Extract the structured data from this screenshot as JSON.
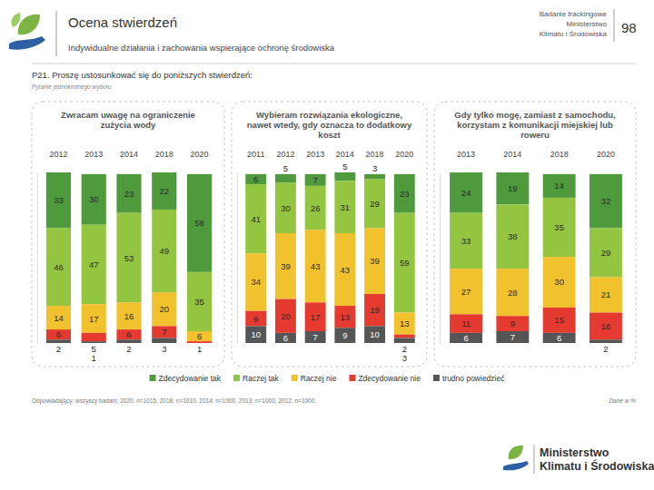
{
  "header": {
    "title": "Ocena stwierdzeń",
    "subtitle": "Indywidualne działania i zachowania wspierające ochronę środowiska",
    "source": [
      "Badanie trackingowe",
      "Ministerstwo",
      "Klimatu i Środowiska"
    ],
    "page": "98"
  },
  "question": "P21. Proszę ustosunkować się do poniższych stwierdzeń:",
  "question_note": "Pytanie jednokrotnego wyboru.",
  "footnote": "Odpowiadający: wszyscy badani; 2020: n=1015, 2018: n=1010, 2014: n=1000, 2013: n=1000, 2012: n=1000.",
  "unit_note": "Dane w %",
  "logo": [
    "Ministerstwo",
    "Klimatu i Środowiska"
  ],
  "chart_data": [
    {
      "type": "bar",
      "title": "Zwracam uwagę na ograniczenie zużycia wody",
      "stacked": true,
      "data_labels": true,
      "tick_labels": "x",
      "legend": "bottom",
      "categories": [
        "2012",
        "2013",
        "2014",
        "2018",
        "2020"
      ],
      "ylim": [
        0,
        101
      ],
      "yticks": [],
      "series": [
        {
          "name": "Zdecydowanie tak",
          "color": "#4e9a3c",
          "values": [
            33,
            30,
            23,
            22,
            58
          ]
        },
        {
          "name": "Raczej tak",
          "color": "#93c540",
          "values": [
            46,
            47,
            53,
            49,
            35
          ]
        },
        {
          "name": "Raczej nie",
          "color": "#f2c12e",
          "values": [
            14,
            17,
            16,
            20,
            6
          ]
        },
        {
          "name": "Zdecydowanie nie",
          "color": "#e53a2f",
          "values": [
            6,
            5,
            6,
            7,
            1
          ]
        },
        {
          "name": "trudno powiedzieć",
          "color": "#555555",
          "values": [
            2,
            1,
            2,
            3,
            null
          ]
        }
      ]
    },
    {
      "type": "bar",
      "title": "Wybieram rozwiązania ekologiczne, nawet wtedy, gdy oznacza to dodatkowy koszt",
      "stacked": true,
      "data_labels": true,
      "tick_labels": "x",
      "categories": [
        "2011",
        "2012",
        "2013",
        "2014",
        "2018",
        "2020"
      ],
      "ylim": [
        0,
        101
      ],
      "yticks": [],
      "series": [
        {
          "color": "#4e9a3c",
          "values": [
            6,
            5,
            7,
            5,
            3,
            23
          ]
        },
        {
          "color": "#93c540",
          "values": [
            41,
            30,
            26,
            31,
            29,
            59
          ]
        },
        {
          "color": "#f2c12e",
          "values": [
            34,
            39,
            43,
            43,
            39,
            13
          ]
        },
        {
          "color": "#e53a2f",
          "values": [
            9,
            20,
            17,
            13,
            19,
            2
          ]
        },
        {
          "color": "#555555",
          "values": [
            10,
            6,
            7,
            9,
            10,
            3
          ]
        }
      ]
    },
    {
      "type": "bar",
      "title": "Gdy tylko mogę, zamiast z samochodu, korzystam z komunikacji miejskiej lub roweru",
      "stacked": true,
      "data_labels": true,
      "tick_labels": "x",
      "categories": [
        "2013",
        "2014",
        "2018",
        "2020"
      ],
      "ylim": [
        0,
        101
      ],
      "yticks": [],
      "series": [
        {
          "color": "#4e9a3c",
          "values": [
            24,
            19,
            14,
            32
          ]
        },
        {
          "color": "#93c540",
          "values": [
            33,
            38,
            35,
            29
          ]
        },
        {
          "color": "#f2c12e",
          "values": [
            27,
            28,
            30,
            21
          ]
        },
        {
          "color": "#e53a2f",
          "values": [
            11,
            9,
            15,
            16
          ]
        },
        {
          "color": "#555555",
          "values": [
            6,
            7,
            6,
            2
          ]
        }
      ]
    }
  ]
}
